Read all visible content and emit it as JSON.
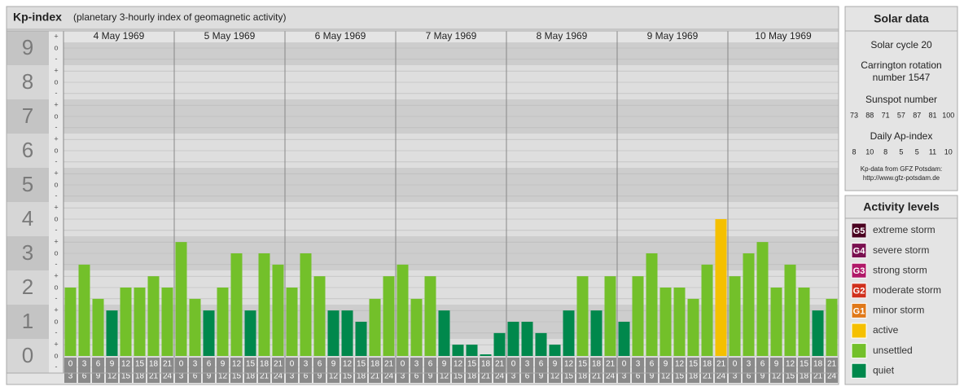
{
  "chart_data": {
    "type": "bar",
    "title": "Kp-index",
    "subtitle": "(planetary 3-hourly index of geomagnetic activity)",
    "ylim": [
      -0.5,
      9.5
    ],
    "yticks": [
      0,
      1,
      2,
      3,
      4,
      5,
      6,
      7,
      8,
      9
    ],
    "yminor": [
      {
        "value": -0.33,
        "label": "-"
      },
      {
        "value": 0,
        "label": "o"
      },
      {
        "value": 0.33,
        "label": "+"
      },
      {
        "value": 0.67,
        "label": "-"
      },
      {
        "value": 1,
        "label": "o"
      },
      {
        "value": 1.33,
        "label": "+"
      },
      {
        "value": 1.67,
        "label": "-"
      },
      {
        "value": 2,
        "label": "o"
      },
      {
        "value": 2.33,
        "label": "+"
      },
      {
        "value": 2.67,
        "label": "-"
      },
      {
        "value": 3,
        "label": "o"
      },
      {
        "value": 3.33,
        "label": "+"
      },
      {
        "value": 3.67,
        "label": "-"
      },
      {
        "value": 4,
        "label": "o"
      },
      {
        "value": 4.33,
        "label": "+"
      },
      {
        "value": 4.67,
        "label": "-"
      },
      {
        "value": 5,
        "label": "o"
      },
      {
        "value": 5.33,
        "label": "+"
      },
      {
        "value": 5.67,
        "label": "-"
      },
      {
        "value": 6,
        "label": "o"
      },
      {
        "value": 6.33,
        "label": "+"
      },
      {
        "value": 6.67,
        "label": "-"
      },
      {
        "value": 7,
        "label": "o"
      },
      {
        "value": 7.33,
        "label": "+"
      },
      {
        "value": 7.67,
        "label": "-"
      },
      {
        "value": 8,
        "label": "o"
      },
      {
        "value": 8.33,
        "label": "+"
      },
      {
        "value": 8.67,
        "label": "-"
      },
      {
        "value": 9,
        "label": "o"
      },
      {
        "value": 9.33,
        "label": "+"
      }
    ],
    "hours": [
      "0",
      "3",
      "6",
      "9",
      "12",
      "15",
      "18",
      "21",
      "24"
    ],
    "days": [
      {
        "label": "4 May 1969",
        "values": [
          2,
          2.67,
          1.67,
          1.33,
          2,
          2,
          2.33,
          2
        ],
        "colors": [
          "#73c02a",
          "#73c02a",
          "#73c02a",
          "#00884c",
          "#73c02a",
          "#73c02a",
          "#73c02a",
          "#73c02a"
        ]
      },
      {
        "label": "5 May 1969",
        "values": [
          3.33,
          1.67,
          1.33,
          2,
          3,
          1.33,
          3,
          2.67
        ],
        "colors": [
          "#73c02a",
          "#73c02a",
          "#00884c",
          "#73c02a",
          "#73c02a",
          "#00884c",
          "#73c02a",
          "#73c02a"
        ]
      },
      {
        "label": "6 May 1969",
        "values": [
          2,
          3,
          2.33,
          1.33,
          1.33,
          1,
          1.67,
          2.33
        ],
        "colors": [
          "#73c02a",
          "#73c02a",
          "#73c02a",
          "#00884c",
          "#00884c",
          "#00884c",
          "#73c02a",
          "#73c02a"
        ]
      },
      {
        "label": "7 May 1969",
        "values": [
          2.67,
          1.67,
          2.33,
          1.33,
          0.33,
          0.33,
          0,
          0.67
        ],
        "colors": [
          "#73c02a",
          "#73c02a",
          "#73c02a",
          "#00884c",
          "#00884c",
          "#00884c",
          "#00884c",
          "#00884c"
        ]
      },
      {
        "label": "8 May 1969",
        "values": [
          1,
          1,
          0.67,
          0.33,
          1.33,
          2.33,
          1.33,
          2.33
        ],
        "colors": [
          "#00884c",
          "#00884c",
          "#00884c",
          "#00884c",
          "#00884c",
          "#73c02a",
          "#00884c",
          "#73c02a"
        ]
      },
      {
        "label": "9 May 1969",
        "values": [
          1,
          2.33,
          3,
          2,
          2,
          1.67,
          2.67,
          4
        ],
        "colors": [
          "#00884c",
          "#73c02a",
          "#73c02a",
          "#73c02a",
          "#73c02a",
          "#73c02a",
          "#73c02a",
          "#f5c000"
        ]
      },
      {
        "label": "10 May 1969",
        "values": [
          2.33,
          3,
          3.33,
          2,
          2.67,
          2,
          1.33,
          1.67
        ],
        "colors": [
          "#73c02a",
          "#73c02a",
          "#73c02a",
          "#73c02a",
          "#73c02a",
          "#73c02a",
          "#00884c",
          "#73c02a"
        ]
      }
    ]
  },
  "solar_data": {
    "title": "Solar data",
    "solar_cycle": "Solar cycle 20",
    "carrington": [
      "Carrington rotation",
      "number 1547"
    ],
    "sunspot_title": "Sunspot number",
    "sunspot_numbers": [
      73,
      88,
      71,
      57,
      87,
      81,
      100
    ],
    "ap_title": "Daily Ap-index",
    "ap_index": [
      8,
      10,
      8,
      5,
      5,
      11,
      10
    ],
    "credit": [
      "Kp-data from GFZ Potsdam:",
      "http://www.gfz-potsdam.de"
    ]
  },
  "activity_levels": {
    "title": "Activity levels",
    "items": [
      {
        "badge": "G5",
        "label": "extreme storm",
        "color": "#4a0020"
      },
      {
        "badge": "G4",
        "label": "severe storm",
        "color": "#7a1050"
      },
      {
        "badge": "G3",
        "label": "strong storm",
        "color": "#b01868"
      },
      {
        "badge": "G2",
        "label": "moderate storm",
        "color": "#d0301c"
      },
      {
        "badge": "G1",
        "label": "minor storm",
        "color": "#e07818"
      },
      {
        "label": "active",
        "color": "#f5c000"
      },
      {
        "label": "unsettled",
        "color": "#73c02a"
      },
      {
        "label": "quiet",
        "color": "#00884c"
      }
    ]
  }
}
